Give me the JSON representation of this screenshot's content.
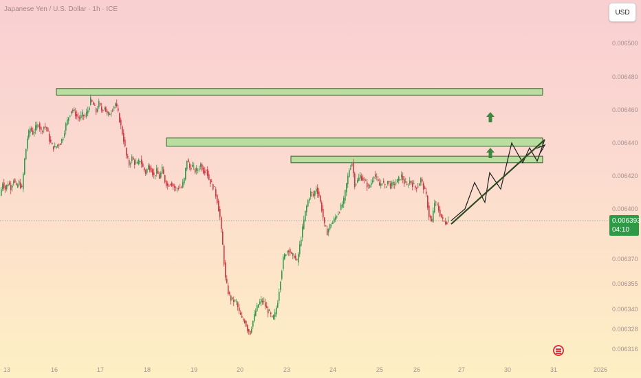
{
  "header": {
    "title": "Japanese Yen / U.S. Dollar · 1h · ICE",
    "currency_label": "USD"
  },
  "price_tag": {
    "price": "0.006393",
    "countdown": "04:10"
  },
  "colors": {
    "up": "#2f9a4a",
    "down": "#d8323f",
    "zone_fill": "#b9dea0",
    "zone_stroke": "#3b5a2a",
    "line": "#2d4a23"
  },
  "chart_data": {
    "type": "candlestick",
    "y_ticks": [
      0.0065,
      0.00648,
      0.00646,
      0.00644,
      0.00642,
      0.0064,
      0.00637,
      0.006355,
      0.00634,
      0.006328,
      0.006316
    ],
    "y_tick_labels": [
      "0.006500",
      "0.006480",
      "0.006460",
      "0.006440",
      "0.006420",
      "0.006400",
      "0.006370",
      "0.006355",
      "0.006340",
      "0.006328",
      "0.006316"
    ],
    "x_tick_labels": [
      "13",
      "16",
      "17",
      "18",
      "19",
      "20",
      "23",
      "24",
      "25",
      "26",
      "27",
      "30",
      "31",
      "2026"
    ],
    "current_price": 0.006393,
    "resistance_zones": [
      {
        "from_label": "16",
        "to_label": "30",
        "low": 0.006469,
        "high": 0.006473
      },
      {
        "from_label": "18",
        "to_label": "30",
        "low": 0.006438,
        "high": 0.006443
      },
      {
        "from_label": "23",
        "to_label": "30",
        "low": 0.006428,
        "high": 0.006432
      }
    ],
    "path": [
      [
        0,
        0.006408
      ],
      [
        4,
        0.006416
      ],
      [
        8,
        0.006412
      ],
      [
        12,
        0.006416
      ],
      [
        16,
        0.006413
      ],
      [
        20,
        0.006418
      ],
      [
        24,
        0.006413
      ],
      [
        28,
        0.006416
      ],
      [
        32,
        0.006412
      ],
      [
        36,
        0.00643
      ],
      [
        40,
        0.006443
      ],
      [
        44,
        0.006449
      ],
      [
        48,
        0.006446
      ],
      [
        52,
        0.006449
      ],
      [
        56,
        0.006452
      ],
      [
        60,
        0.006447
      ],
      [
        64,
        0.00645
      ],
      [
        68,
        0.006449
      ],
      [
        72,
        0.006442
      ],
      [
        76,
        0.006438
      ],
      [
        80,
        0.006437
      ],
      [
        84,
        0.006439
      ],
      [
        88,
        0.00644
      ],
      [
        92,
        0.006444
      ],
      [
        96,
        0.006451
      ],
      [
        100,
        0.006456
      ],
      [
        104,
        0.00646
      ],
      [
        108,
        0.006459
      ],
      [
        112,
        0.006456
      ],
      [
        116,
        0.006455
      ],
      [
        120,
        0.006457
      ],
      [
        124,
        0.006456
      ],
      [
        128,
        0.00646
      ],
      [
        132,
        0.006466
      ],
      [
        136,
        0.006463
      ],
      [
        140,
        0.006459
      ],
      [
        144,
        0.006464
      ],
      [
        148,
        0.00646
      ],
      [
        152,
        0.006462
      ],
      [
        156,
        0.006457
      ],
      [
        160,
        0.006458
      ],
      [
        164,
        0.006461
      ],
      [
        168,
        0.006464
      ],
      [
        172,
        0.006458
      ],
      [
        176,
        0.00645
      ],
      [
        180,
        0.006442
      ],
      [
        184,
        0.006432
      ],
      [
        188,
        0.006427
      ],
      [
        192,
        0.006431
      ],
      [
        196,
        0.006428
      ],
      [
        200,
        0.006427
      ],
      [
        204,
        0.00643
      ],
      [
        208,
        0.006425
      ],
      [
        212,
        0.006422
      ],
      [
        216,
        0.006426
      ],
      [
        220,
        0.006424
      ],
      [
        224,
        0.00642
      ],
      [
        228,
        0.006423
      ],
      [
        232,
        0.006419
      ],
      [
        236,
        0.006424
      ],
      [
        240,
        0.006417
      ],
      [
        244,
        0.006414
      ],
      [
        248,
        0.006416
      ],
      [
        252,
        0.006414
      ],
      [
        256,
        0.006412
      ],
      [
        260,
        0.006413
      ],
      [
        264,
        0.006413
      ],
      [
        268,
        0.006418
      ],
      [
        272,
        0.00643
      ],
      [
        276,
        0.006425
      ],
      [
        280,
        0.006426
      ],
      [
        284,
        0.006423
      ],
      [
        288,
        0.006424
      ],
      [
        292,
        0.006427
      ],
      [
        296,
        0.006423
      ],
      [
        300,
        0.006424
      ],
      [
        304,
        0.006418
      ],
      [
        308,
        0.006415
      ],
      [
        312,
        0.006412
      ],
      [
        316,
        0.006405
      ],
      [
        320,
        0.006395
      ],
      [
        324,
        0.006378
      ],
      [
        328,
        0.006358
      ],
      [
        332,
        0.00635
      ],
      [
        336,
        0.006346
      ],
      [
        340,
        0.006345
      ],
      [
        344,
        0.006344
      ],
      [
        348,
        0.006338
      ],
      [
        352,
        0.006334
      ],
      [
        356,
        0.006333
      ],
      [
        360,
        0.006328
      ],
      [
        364,
        0.006326
      ],
      [
        368,
        0.006333
      ],
      [
        372,
        0.006339
      ],
      [
        376,
        0.006343
      ],
      [
        380,
        0.006345
      ],
      [
        384,
        0.006344
      ],
      [
        388,
        0.00634
      ],
      [
        392,
        0.006338
      ],
      [
        396,
        0.006334
      ],
      [
        400,
        0.006337
      ],
      [
        404,
        0.006345
      ],
      [
        408,
        0.006358
      ],
      [
        412,
        0.00637
      ],
      [
        416,
        0.006374
      ],
      [
        420,
        0.006376
      ],
      [
        424,
        0.006372
      ],
      [
        428,
        0.006372
      ],
      [
        432,
        0.006368
      ],
      [
        436,
        0.006378
      ],
      [
        440,
        0.006388
      ],
      [
        444,
        0.006398
      ],
      [
        448,
        0.006405
      ],
      [
        452,
        0.00641
      ],
      [
        456,
        0.006408
      ],
      [
        460,
        0.006413
      ],
      [
        464,
        0.006408
      ],
      [
        468,
        0.0064
      ],
      [
        472,
        0.00639
      ],
      [
        476,
        0.006386
      ],
      [
        480,
        0.00639
      ],
      [
        484,
        0.006392
      ],
      [
        488,
        0.006395
      ],
      [
        492,
        0.006398
      ],
      [
        496,
        0.006401
      ],
      [
        500,
        0.006405
      ],
      [
        504,
        0.006415
      ],
      [
        508,
        0.006424
      ],
      [
        512,
        0.006428
      ],
      [
        516,
        0.006415
      ],
      [
        520,
        0.006417
      ],
      [
        524,
        0.00642
      ],
      [
        528,
        0.006418
      ],
      [
        532,
        0.006416
      ],
      [
        536,
        0.006413
      ],
      [
        540,
        0.006416
      ],
      [
        544,
        0.006421
      ],
      [
        548,
        0.006418
      ],
      [
        552,
        0.006414
      ],
      [
        556,
        0.006417
      ],
      [
        560,
        0.006413
      ],
      [
        564,
        0.006417
      ],
      [
        568,
        0.006414
      ],
      [
        572,
        0.006415
      ],
      [
        576,
        0.006416
      ],
      [
        580,
        0.006418
      ],
      [
        584,
        0.00642
      ],
      [
        588,
        0.006416
      ],
      [
        592,
        0.006414
      ],
      [
        596,
        0.006417
      ],
      [
        600,
        0.006415
      ],
      [
        604,
        0.006413
      ],
      [
        608,
        0.006414
      ],
      [
        612,
        0.006418
      ],
      [
        616,
        0.006413
      ],
      [
        620,
        0.006408
      ],
      [
        624,
        0.006396
      ],
      [
        628,
        0.006392
      ],
      [
        632,
        0.006404
      ],
      [
        636,
        0.006402
      ],
      [
        640,
        0.006397
      ],
      [
        644,
        0.006393
      ],
      [
        648,
        0.006392
      ],
      [
        652,
        0.006393
      ]
    ],
    "projection": [
      [
        0.006393
      ],
      [
        0.0064
      ],
      [
        0.006416
      ],
      [
        0.006404
      ],
      [
        0.006422
      ],
      [
        0.006412
      ],
      [
        0.00644
      ],
      [
        0.006428
      ],
      [
        0.006437
      ],
      [
        0.006429
      ],
      [
        0.006442
      ]
    ],
    "trend_line": [
      0.006393,
      0.006442
    ],
    "up_arrows": 2
  }
}
